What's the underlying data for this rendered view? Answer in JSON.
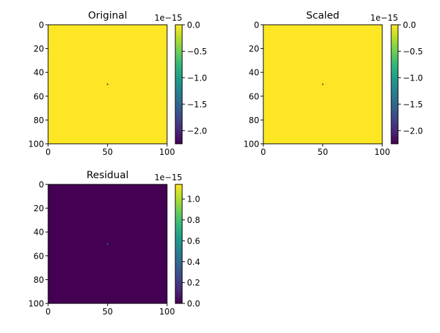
{
  "chart_data": [
    {
      "type": "heatmap",
      "title": "Original",
      "xlim": [
        0,
        100
      ],
      "ylim": [
        100,
        0
      ],
      "xticks": [
        0,
        50,
        100
      ],
      "yticks": [
        0,
        20,
        40,
        60,
        80,
        100
      ],
      "background_value": 0.0,
      "hot_pixel": {
        "x": 50,
        "y": 50,
        "value": -2.25e-15
      },
      "colorbar": {
        "range": [
          -2.25e-15,
          0.0
        ],
        "ticks": [
          "0.0",
          "-0.5",
          "-1.0",
          "-1.5",
          "-2.0"
        ],
        "tick_values": [
          0.0,
          -0.5,
          -1.0,
          -1.5,
          -2.0
        ],
        "exponent_label": "1e−15",
        "scale": 1e-15
      }
    },
    {
      "type": "heatmap",
      "title": "Scaled",
      "xlim": [
        0,
        100
      ],
      "ylim": [
        100,
        0
      ],
      "xticks": [
        0,
        50,
        100
      ],
      "yticks": [
        0,
        20,
        40,
        60,
        80,
        100
      ],
      "background_value": 0.0,
      "hot_pixel": {
        "x": 50,
        "y": 50,
        "value": -2.25e-15
      },
      "colorbar": {
        "range": [
          -2.25e-15,
          0.0
        ],
        "ticks": [
          "0.0",
          "-0.5",
          "-1.0",
          "-1.5",
          "-2.0"
        ],
        "tick_values": [
          0.0,
          -0.5,
          -1.0,
          -1.5,
          -2.0
        ],
        "exponent_label": "1e−15",
        "scale": 1e-15
      }
    },
    {
      "type": "heatmap",
      "title": "Residual",
      "xlim": [
        0,
        100
      ],
      "ylim": [
        100,
        0
      ],
      "xticks": [
        0,
        50,
        100
      ],
      "yticks": [
        0,
        20,
        40,
        60,
        80,
        100
      ],
      "background_value": 0.0,
      "hot_pixel": {
        "x": 50,
        "y": 50,
        "value": 5.5e-16
      },
      "colorbar": {
        "range": [
          0.0,
          1.14e-15
        ],
        "ticks": [
          "0.0",
          "0.2",
          "0.4",
          "0.6",
          "0.8",
          "1.0"
        ],
        "tick_values": [
          0.0,
          0.2,
          0.4,
          0.6,
          0.8,
          1.0
        ],
        "exponent_label": "1e−15",
        "scale": 1e-15
      }
    }
  ],
  "colormap": {
    "name": "viridis",
    "stops": [
      "#440154",
      "#482878",
      "#3e4989",
      "#31688e",
      "#26828e",
      "#1f9e89",
      "#35b779",
      "#6ece58",
      "#b5de2b",
      "#fde725"
    ]
  }
}
